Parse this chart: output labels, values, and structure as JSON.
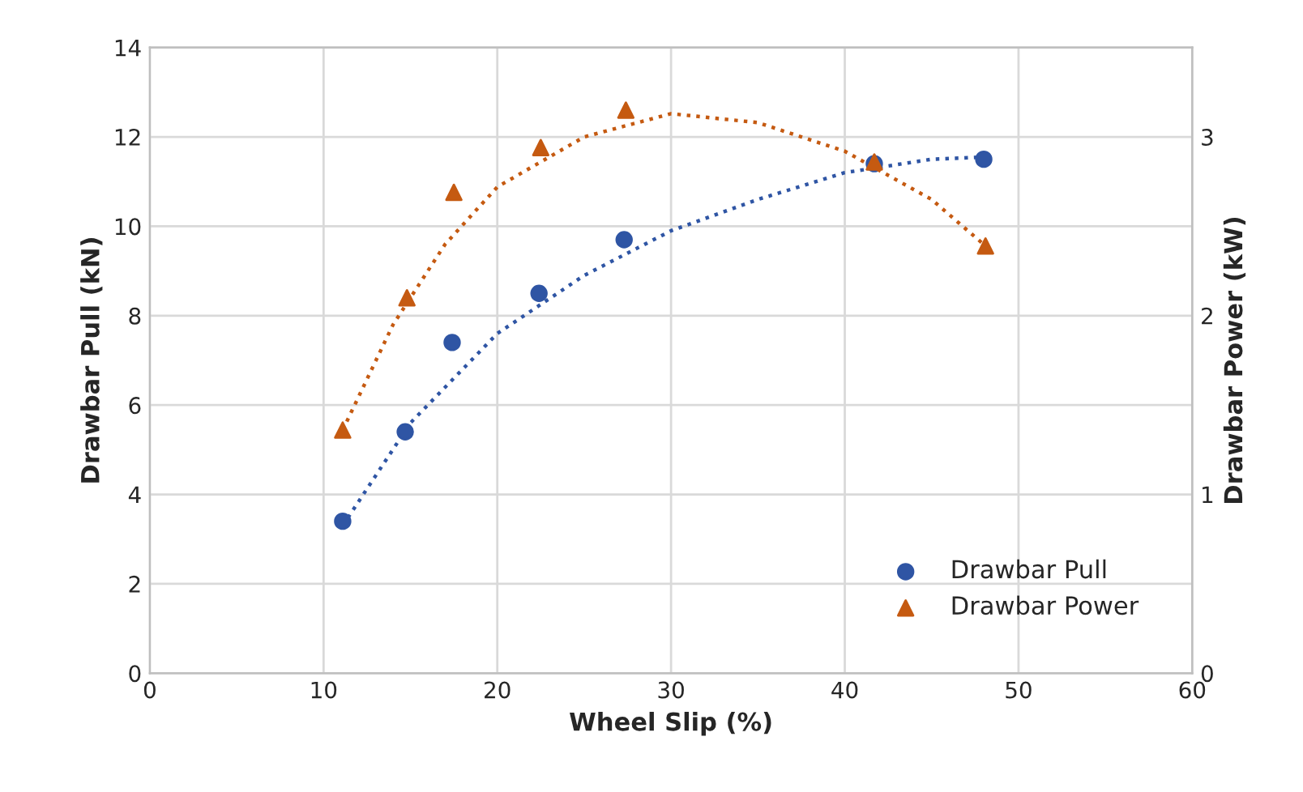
{
  "chart_data": {
    "type": "scatter",
    "xlabel": "Wheel Slip (%)",
    "ylabel": "Drawbar Pull (kN)",
    "y2label": "Drawbar Power (kW)",
    "xlim": [
      0,
      60
    ],
    "xticks": [
      0,
      10,
      20,
      30,
      40,
      50,
      60
    ],
    "ylim": [
      0,
      14
    ],
    "yticks": [
      0,
      2,
      4,
      6,
      8,
      10,
      12,
      14
    ],
    "y2lim": [
      0,
      3.5
    ],
    "y2ticks": [
      0,
      1,
      2,
      3
    ],
    "grid": true,
    "legend": "bottom right",
    "series": [
      {
        "name": "Drawbar Pull",
        "marker": "circle",
        "color": "#2f55a4",
        "x": [
          11.1,
          14.7,
          17.4,
          22.4,
          27.3,
          41.7,
          48.0
        ],
        "values": [
          3.4,
          5.4,
          7.4,
          8.5,
          9.7,
          11.4,
          11.5
        ]
      },
      {
        "name": "Drawbar Power",
        "marker": "triangle",
        "axis": "y2",
        "color": "#c55a11",
        "x": [
          11.1,
          14.8,
          17.5,
          22.5,
          27.4,
          41.7,
          48.1
        ],
        "values": [
          1.36,
          2.1,
          2.69,
          2.94,
          3.15,
          2.86,
          2.39
        ]
      },
      {
        "type": "line",
        "line_style": "dotted",
        "color": "#2f55a4",
        "x": [
          11.1,
          15,
          20,
          25,
          30,
          35,
          40,
          45,
          48.1
        ],
        "values": [
          3.3,
          5.6,
          7.6,
          8.9,
          9.9,
          10.6,
          11.2,
          11.5,
          11.55
        ]
      },
      {
        "type": "line",
        "line_style": "dotted",
        "axis": "y2",
        "color": "#c55a11",
        "x": [
          11.1,
          14,
          17,
          20,
          25,
          30,
          35,
          40,
          45,
          48.1
        ],
        "values": [
          1.36,
          1.95,
          2.4,
          2.72,
          3.0,
          3.13,
          3.08,
          2.92,
          2.65,
          2.39
        ]
      }
    ]
  }
}
